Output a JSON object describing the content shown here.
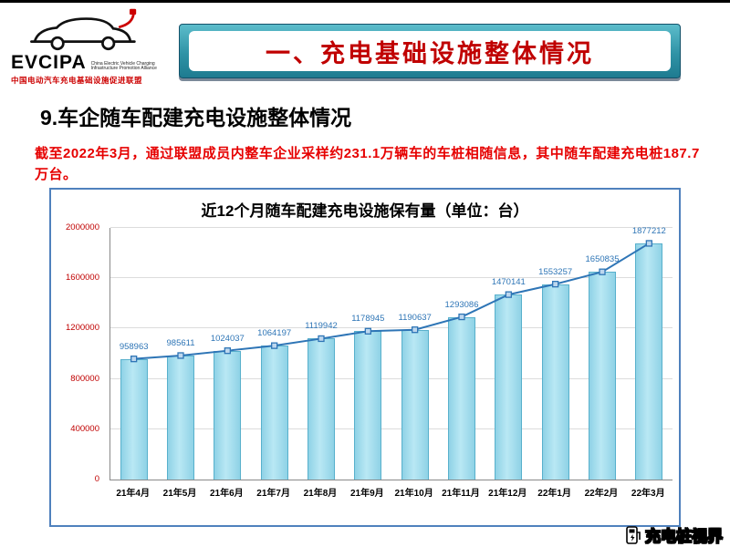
{
  "page": {
    "logo": {
      "acronym": "EVCIPA",
      "subtitle_en": "China Electric Vehicle Charging Infrastructure Promotion Alliance",
      "subtitle_cn": "中国电动汽车充电基础设施促进联盟"
    },
    "banner_title": "一、充电基础设施整体情况",
    "section_title": "9.车企随车配建充电设施整体情况",
    "intro_text": "截至2022年3月，通过联盟成员内整车企业采样约231.1万辆车的车桩相随信息，其中随车配建充电桩187.7万台。",
    "watermark": "充电桩视界"
  },
  "chart_data": {
    "type": "bar",
    "title": "近12个月随车配建充电设施保有量（单位：台）",
    "categories": [
      "21年4月",
      "21年5月",
      "21年6月",
      "21年7月",
      "21年8月",
      "21年9月",
      "21年10月",
      "21年11月",
      "21年12月",
      "22年1月",
      "22年2月",
      "22年3月"
    ],
    "values": [
      958963,
      985611,
      1024037,
      1064197,
      1119942,
      1178945,
      1190637,
      1293086,
      1470141,
      1553257,
      1650835,
      1877212
    ],
    "series_note": "values shown both as cyan bars and blue line with square markers, data labels above points",
    "xlabel": "",
    "ylabel": "",
    "ylim": [
      0,
      2000000
    ],
    "yticks": [
      0,
      400000,
      800000,
      1200000,
      1600000,
      2000000
    ],
    "grid": true,
    "legend": "none",
    "bar_color": "#a9dff0",
    "bar_border_color": "#58b0cc",
    "line_color": "#2e75b6",
    "marker_fill": "#bdd7ee",
    "label_color": "#2e75b6",
    "ytick_color": "#c00000"
  }
}
